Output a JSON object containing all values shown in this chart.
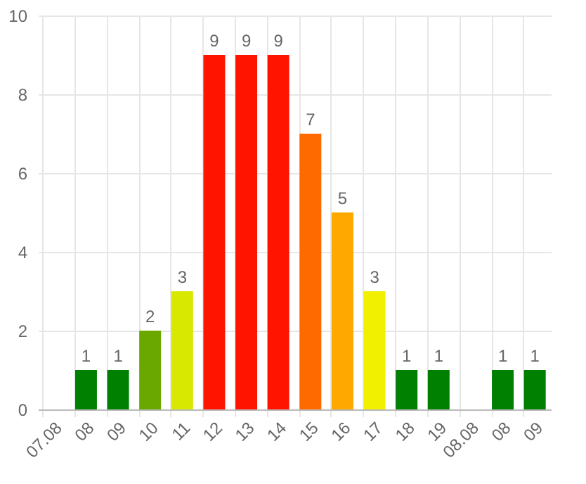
{
  "chart_data": {
    "type": "bar",
    "categories": [
      "07.08",
      "08",
      "09",
      "10",
      "11",
      "12",
      "13",
      "14",
      "15",
      "16",
      "17",
      "18",
      "19",
      "08.08",
      "08",
      "09"
    ],
    "values": [
      null,
      1,
      1,
      2,
      3,
      9,
      9,
      9,
      7,
      5,
      3,
      1,
      1,
      null,
      1,
      1
    ],
    "colors": [
      "#008000",
      "#008000",
      "#008000",
      "#6aa800",
      "#d8e800",
      "#ff1400",
      "#ff1400",
      "#ff1400",
      "#ff6a00",
      "#ffa800",
      "#f0f000",
      "#008000",
      "#008000",
      "#008000",
      "#008000",
      "#008000"
    ],
    "ylim": [
      0,
      10
    ],
    "yticks": [
      0,
      2,
      4,
      6,
      8,
      10
    ],
    "grid": true,
    "data_labels": true
  }
}
